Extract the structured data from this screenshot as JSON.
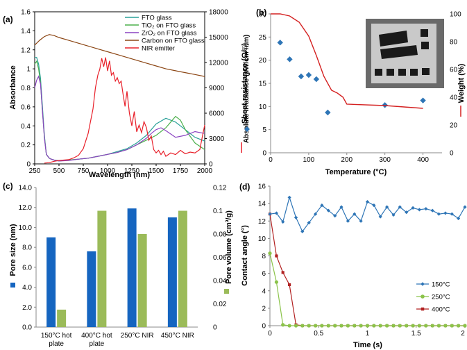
{
  "chart_data": [
    {
      "panel": "(a)",
      "type": "line",
      "xlabel": "Wavelength (nm)",
      "ylabel": "Absorbance",
      "y2label": "Absolute irradiance (µW/cm²/nm)",
      "xlim": [
        250,
        2000
      ],
      "ylim": [
        0,
        1.6
      ],
      "y2lim": [
        0,
        18000
      ],
      "xticks": [
        "250",
        "500",
        "750",
        "1000",
        "1250",
        "1500",
        "1750",
        "2000"
      ],
      "yticks": [
        "0",
        "0.2",
        "0.4",
        "0.6",
        "0.8",
        "1",
        "1.2",
        "1.4",
        "1.6"
      ],
      "y2ticks": [
        "0",
        "3000",
        "6000",
        "9000",
        "12000",
        "15000",
        "18000"
      ],
      "legend_position": "top-right",
      "series": [
        {
          "name": "FTO glass",
          "color": "#2aa198",
          "axis": "left",
          "x": [
            250,
            270,
            290,
            310,
            330,
            350,
            370,
            400,
            420,
            450,
            500,
            600,
            700,
            800,
            900,
            1000,
            1100,
            1200,
            1300,
            1400,
            1500,
            1600,
            1700,
            1800,
            1900,
            2000
          ],
          "y": [
            1.12,
            1.12,
            1.05,
            0.9,
            0.6,
            0.3,
            0.1,
            0.06,
            0.05,
            0.04,
            0.035,
            0.04,
            0.05,
            0.06,
            0.08,
            0.1,
            0.13,
            0.16,
            0.22,
            0.3,
            0.42,
            0.48,
            0.44,
            0.36,
            0.28,
            0.24
          ]
        },
        {
          "name": "TiO₂ on FTO glass",
          "color": "#4cb04c",
          "axis": "left",
          "x": [
            250,
            270,
            290,
            310,
            330,
            350,
            370,
            400,
            420,
            450,
            500,
            600,
            700,
            800,
            900,
            1000,
            1100,
            1200,
            1300,
            1400,
            1500,
            1600,
            1650,
            1700,
            1750,
            1800,
            1900,
            2000
          ],
          "y": [
            1.05,
            1.08,
            1.0,
            0.85,
            0.55,
            0.28,
            0.1,
            0.06,
            0.05,
            0.04,
            0.03,
            0.04,
            0.05,
            0.06,
            0.08,
            0.1,
            0.12,
            0.15,
            0.2,
            0.25,
            0.3,
            0.38,
            0.44,
            0.5,
            0.46,
            0.36,
            0.22,
            0.15
          ]
        },
        {
          "name": "ZrO₂ on FTO glass",
          "color": "#8b44c2",
          "axis": "left",
          "x": [
            250,
            270,
            290,
            310,
            330,
            350,
            370,
            400,
            420,
            450,
            500,
            600,
            700,
            800,
            900,
            1000,
            1100,
            1200,
            1300,
            1400,
            1450,
            1500,
            1550,
            1600,
            1700,
            1800,
            1900,
            2000
          ],
          "y": [
            0.8,
            0.88,
            0.92,
            0.84,
            0.55,
            0.27,
            0.1,
            0.06,
            0.05,
            0.04,
            0.03,
            0.035,
            0.05,
            0.06,
            0.08,
            0.1,
            0.12,
            0.15,
            0.2,
            0.27,
            0.32,
            0.36,
            0.38,
            0.35,
            0.28,
            0.3,
            0.34,
            0.32
          ]
        },
        {
          "name": "Carbon on FTO glass",
          "color": "#8b4513",
          "axis": "left",
          "x": [
            250,
            300,
            350,
            400,
            450,
            500,
            600,
            700,
            800,
            900,
            1000,
            1100,
            1200,
            1300,
            1400,
            1500,
            1600,
            1700,
            1800,
            1900,
            2000
          ],
          "y": [
            1.25,
            1.3,
            1.34,
            1.36,
            1.35,
            1.33,
            1.3,
            1.27,
            1.24,
            1.21,
            1.18,
            1.15,
            1.12,
            1.09,
            1.06,
            1.03,
            1.0,
            0.98,
            0.96,
            0.94,
            0.92
          ]
        },
        {
          "name": "NIR emitter",
          "color": "#e8202a",
          "axis": "right",
          "x": [
            350,
            400,
            450,
            500,
            550,
            600,
            650,
            700,
            750,
            800,
            850,
            875,
            900,
            920,
            940,
            960,
            980,
            1000,
            1020,
            1040,
            1060,
            1080,
            1100,
            1120,
            1140,
            1160,
            1180,
            1200,
            1225,
            1250,
            1275,
            1300,
            1325,
            1350,
            1375,
            1400,
            1425,
            1450,
            1475,
            1500,
            1525,
            1550,
            1575,
            1600,
            1650,
            1700,
            1750,
            1800,
            1850,
            1900,
            1950,
            1975,
            2000
          ],
          "y": [
            100,
            150,
            300,
            400,
            450,
            500,
            700,
            1000,
            1800,
            3600,
            6500,
            9000,
            10500,
            11200,
            12500,
            11500,
            12600,
            11000,
            12200,
            10500,
            10800,
            9800,
            10200,
            9500,
            9800,
            8200,
            6800,
            8600,
            6000,
            4500,
            6200,
            3800,
            4600,
            3700,
            5000,
            4300,
            2800,
            3300,
            1700,
            1300,
            1600,
            1100,
            1500,
            900,
            1300,
            1100,
            1600,
            1200,
            1400,
            1300,
            1700,
            3200,
            4600
          ]
        }
      ]
    },
    {
      "panel": "(b)",
      "type": "scatter",
      "xlabel": "Temperature (°C)",
      "ylabel": "Sheet resistance (Ω/□)",
      "y2label": "Weight (%)",
      "xlim": [
        0,
        450
      ],
      "ylim": [
        0,
        30
      ],
      "y2lim": [
        0,
        100
      ],
      "xticks": [
        "0",
        "100",
        "200",
        "300",
        "400"
      ],
      "yticks": [
        "0",
        "5",
        "10",
        "15",
        "20",
        "25",
        "30"
      ],
      "y2ticks": [
        "0",
        "20",
        "40",
        "60",
        "80",
        "100"
      ],
      "series": [
        {
          "name": "Sheet resistance",
          "color": "#2e75b6",
          "marker": "diamond",
          "axis": "left",
          "x": [
            25,
            50,
            80,
            100,
            120,
            150,
            300,
            400
          ],
          "y": [
            23.8,
            20.2,
            16.5,
            16.8,
            15.9,
            8.7,
            10.3,
            11.3
          ]
        },
        {
          "name": "Weight",
          "color": "#d42020",
          "axis": "right",
          "x": [
            0,
            25,
            50,
            75,
            100,
            120,
            140,
            160,
            175,
            190,
            200,
            300,
            400
          ],
          "y": [
            100,
            100,
            98.5,
            94,
            84,
            70,
            55,
            45,
            43,
            40,
            35,
            34,
            32
          ]
        }
      ]
    },
    {
      "panel": "(c)",
      "type": "bar",
      "ylabel": "Pore size (nm)",
      "y2label": "Pore volume (cm³/g)",
      "ylim": [
        0,
        14
      ],
      "y2lim": [
        0,
        0.12
      ],
      "yticks": [
        "0.0",
        "2.0",
        "4.0",
        "6.0",
        "8.0",
        "10.0",
        "12.0",
        "14.0"
      ],
      "y2ticks": [
        "0",
        "0.02",
        "0.04",
        "0.06",
        "0.08",
        "0.1",
        "0.12"
      ],
      "categories": [
        [
          "150°C hot",
          "plate"
        ],
        [
          "400°C hot",
          "plate"
        ],
        [
          "250°C NIR"
        ],
        [
          "450°C NIR"
        ]
      ],
      "series": [
        {
          "name": "Pore size",
          "color": "#1565c0",
          "axis": "left",
          "values": [
            9.0,
            7.6,
            11.9,
            11.0
          ]
        },
        {
          "name": "Pore volume",
          "color": "#9bbb59",
          "axis": "right",
          "values": [
            0.015,
            0.1,
            0.08,
            0.1
          ]
        }
      ]
    },
    {
      "panel": "(d)",
      "type": "line",
      "xlabel": "Time (s)",
      "ylabel": "Contact angle (°)",
      "xlim": [
        0,
        2
      ],
      "ylim": [
        0,
        16
      ],
      "xticks": [
        "0",
        "0.5",
        "1",
        "1.5",
        "2"
      ],
      "yticks": [
        "0",
        "2",
        "4",
        "6",
        "8",
        "10",
        "12",
        "14",
        "16"
      ],
      "legend_position": "bottom-right",
      "series": [
        {
          "name": "150°C",
          "color": "#2e75b6",
          "marker": "diamond",
          "x": [
            0,
            0.067,
            0.133,
            0.2,
            0.267,
            0.333,
            0.4,
            0.467,
            0.533,
            0.6,
            0.667,
            0.733,
            0.8,
            0.867,
            0.933,
            1.0,
            1.067,
            1.133,
            1.2,
            1.267,
            1.333,
            1.4,
            1.467,
            1.533,
            1.6,
            1.667,
            1.733,
            1.8,
            1.867,
            1.933,
            2.0
          ],
          "y": [
            12.8,
            12.9,
            11.9,
            14.7,
            12.4,
            10.8,
            11.8,
            12.8,
            13.8,
            13.2,
            12.6,
            13.6,
            12.0,
            12.8,
            12.0,
            14.2,
            13.8,
            12.5,
            13.6,
            12.7,
            13.6,
            13.0,
            13.5,
            13.3,
            13.4,
            13.2,
            12.8,
            12.9,
            12.8,
            12.3,
            13.6
          ]
        },
        {
          "name": "250°C",
          "color": "#8bc34a",
          "marker": "circle",
          "x": [
            0,
            0.067,
            0.133,
            0.2,
            0.267,
            0.333,
            0.4,
            0.467,
            0.533,
            0.6,
            0.667,
            0.733,
            0.8,
            0.867,
            0.933,
            1.0,
            1.067,
            1.133,
            1.2,
            1.267,
            1.333,
            1.4,
            1.467,
            1.533,
            1.6,
            1.667,
            1.733,
            1.8,
            1.867,
            1.933,
            2.0
          ],
          "y": [
            8.3,
            5.0,
            0.1,
            0,
            0,
            0,
            0,
            0,
            0,
            0,
            0,
            0,
            0,
            0,
            0,
            0,
            0,
            0,
            0,
            0,
            0,
            0,
            0,
            0,
            0,
            0,
            0,
            0,
            0,
            0,
            0
          ]
        },
        {
          "name": "400°C",
          "color": "#b22222",
          "marker": "square",
          "x": [
            0,
            0.067,
            0.133,
            0.2,
            0.267,
            0.333,
            0.4,
            0.467,
            0.533,
            0.6,
            0.667,
            0.733,
            0.8,
            0.867,
            0.933,
            1.0,
            1.067,
            1.133,
            1.2,
            1.267,
            1.333,
            1.4,
            1.467,
            1.533,
            1.6,
            1.667,
            1.733,
            1.8,
            1.867,
            1.933,
            2.0
          ],
          "y": [
            12.8,
            8.0,
            6.1,
            4.7,
            0.1,
            0,
            0,
            0,
            0,
            0,
            0,
            0,
            0,
            0,
            0,
            0,
            0,
            0,
            0,
            0,
            0,
            0,
            0,
            0,
            0,
            0,
            0,
            0,
            0,
            0,
            0
          ]
        }
      ]
    }
  ]
}
